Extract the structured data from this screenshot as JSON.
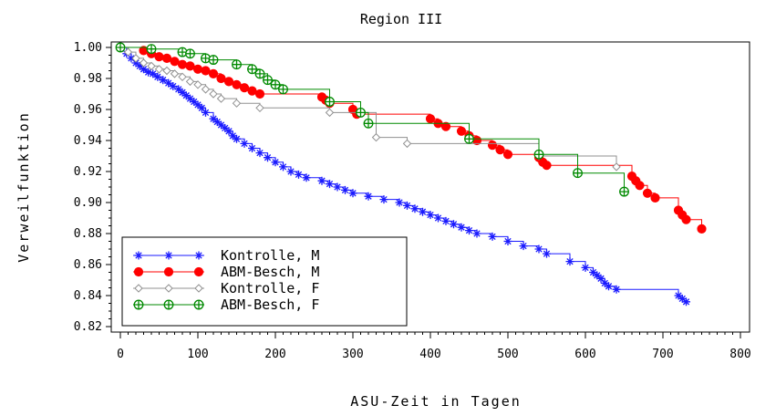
{
  "chart_data": {
    "type": "line",
    "step": true,
    "title": "Region III",
    "xlabel": "ASU-Zeit in Tagen",
    "ylabel": "Verweilfunktion",
    "xlim": [
      0,
      800
    ],
    "ylim": [
      0.82,
      1.0
    ],
    "x_ticks": [
      "0",
      "100",
      "200",
      "300",
      "400",
      "500",
      "600",
      "700",
      "800"
    ],
    "y_ticks": [
      "0.82",
      "0.84",
      "0.86",
      "0.88",
      "0.90",
      "0.92",
      "0.94",
      "0.96",
      "0.98",
      "1.00"
    ],
    "grid": false,
    "legend_position": "bottom-left",
    "series": [
      {
        "name": "Kontrolle, M",
        "color": "#1a1aff",
        "marker": "star",
        "x": [
          0,
          8,
          14,
          20,
          25,
          30,
          36,
          42,
          48,
          55,
          62,
          68,
          75,
          80,
          85,
          90,
          95,
          100,
          105,
          110,
          120,
          125,
          130,
          135,
          140,
          145,
          150,
          160,
          170,
          180,
          190,
          200,
          210,
          220,
          230,
          240,
          260,
          270,
          280,
          290,
          300,
          320,
          340,
          360,
          370,
          380,
          390,
          400,
          410,
          420,
          430,
          440,
          450,
          460,
          480,
          500,
          520,
          540,
          550,
          580,
          600,
          610,
          615,
          620,
          625,
          630,
          640,
          720,
          725,
          730
        ],
        "y": [
          1.0,
          0.996,
          0.993,
          0.99,
          0.988,
          0.986,
          0.984,
          0.983,
          0.981,
          0.979,
          0.977,
          0.975,
          0.973,
          0.971,
          0.969,
          0.967,
          0.965,
          0.963,
          0.961,
          0.958,
          0.954,
          0.952,
          0.95,
          0.948,
          0.946,
          0.943,
          0.941,
          0.938,
          0.935,
          0.932,
          0.929,
          0.926,
          0.923,
          0.92,
          0.918,
          0.916,
          0.914,
          0.912,
          0.91,
          0.908,
          0.906,
          0.904,
          0.902,
          0.9,
          0.898,
          0.896,
          0.894,
          0.892,
          0.89,
          0.888,
          0.886,
          0.884,
          0.882,
          0.88,
          0.878,
          0.875,
          0.872,
          0.87,
          0.867,
          0.862,
          0.858,
          0.855,
          0.853,
          0.851,
          0.848,
          0.846,
          0.844,
          0.84,
          0.838,
          0.836
        ]
      },
      {
        "name": "ABM-Besch, M",
        "color": "#ff0000",
        "marker": "filled-circle",
        "x": [
          0,
          30,
          40,
          50,
          60,
          70,
          80,
          90,
          100,
          110,
          120,
          130,
          140,
          150,
          160,
          170,
          180,
          260,
          265,
          270,
          300,
          305,
          400,
          410,
          420,
          440,
          450,
          460,
          480,
          490,
          500,
          540,
          545,
          550,
          660,
          665,
          670,
          680,
          690,
          720,
          725,
          730,
          750
        ],
        "y": [
          1.0,
          0.998,
          0.996,
          0.994,
          0.993,
          0.991,
          0.989,
          0.988,
          0.986,
          0.985,
          0.983,
          0.98,
          0.978,
          0.976,
          0.974,
          0.972,
          0.97,
          0.968,
          0.966,
          0.964,
          0.96,
          0.957,
          0.954,
          0.951,
          0.949,
          0.946,
          0.943,
          0.94,
          0.937,
          0.934,
          0.931,
          0.929,
          0.926,
          0.924,
          0.917,
          0.914,
          0.911,
          0.906,
          0.903,
          0.895,
          0.892,
          0.889,
          0.883
        ]
      },
      {
        "name": "Kontrolle, F",
        "color": "#909090",
        "marker": "diamond",
        "x": [
          0,
          10,
          20,
          30,
          40,
          50,
          60,
          70,
          80,
          90,
          100,
          110,
          120,
          130,
          150,
          180,
          270,
          330,
          370,
          540,
          640
        ],
        "y": [
          1.0,
          0.997,
          0.993,
          0.99,
          0.988,
          0.986,
          0.985,
          0.983,
          0.981,
          0.978,
          0.976,
          0.973,
          0.97,
          0.967,
          0.964,
          0.961,
          0.958,
          0.942,
          0.938,
          0.93,
          0.923
        ]
      },
      {
        "name": "ABM-Besch, F",
        "color": "#008a00",
        "marker": "crossed-circle",
        "x": [
          0,
          40,
          80,
          90,
          110,
          120,
          150,
          170,
          180,
          190,
          200,
          210,
          270,
          310,
          320,
          450,
          540,
          590,
          650
        ],
        "y": [
          1.0,
          0.999,
          0.997,
          0.996,
          0.993,
          0.992,
          0.989,
          0.986,
          0.983,
          0.979,
          0.976,
          0.973,
          0.965,
          0.958,
          0.951,
          0.941,
          0.931,
          0.919,
          0.907
        ]
      }
    ]
  }
}
